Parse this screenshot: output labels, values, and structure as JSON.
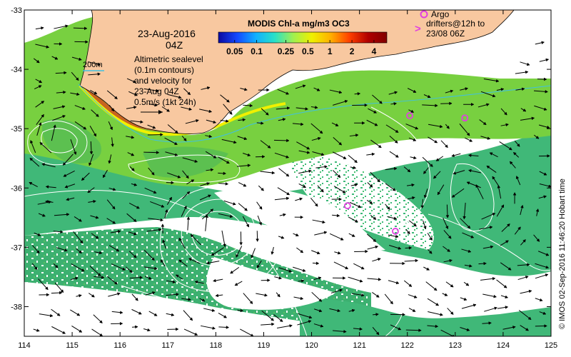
{
  "title_date": "23-Aug-2016",
  "title_time": "04Z",
  "colorbar": {
    "title": "MODIS Chl-a mg/m3 OC3",
    "tick_labels": [
      "0.05",
      "0.1",
      "0.25",
      "0.5",
      "1",
      "2",
      "4"
    ],
    "tick_values": [
      0.05,
      0.1,
      0.25,
      0.5,
      1,
      2,
      4
    ],
    "range": [
      0.03,
      6
    ],
    "scale": "log",
    "colors": [
      "#0a0aa0",
      "#1448ff",
      "#10b0ff",
      "#28e0c8",
      "#a0f050",
      "#f0f000",
      "#ffb000",
      "#ff4000",
      "#b00000",
      "#800000"
    ]
  },
  "isobath_label": "200m",
  "isobath_color": "#40c0e0",
  "annotation_lines": [
    "Altimetric sealevel",
    "(0.1m contours)",
    "and velocity for",
    "23-Aug 04Z",
    "0.5m/s (1kt 24h)"
  ],
  "argo_legend": {
    "line1": "Argo",
    "line2": "drifters@12h to",
    "line3": "23/08 06Z",
    "marker_color": "#e040e0"
  },
  "x_axis": {
    "ticks": [
      "114",
      "115",
      "116",
      "117",
      "118",
      "119",
      "120",
      "121",
      "122",
      "123",
      "124",
      "125"
    ],
    "range": [
      114,
      125
    ]
  },
  "y_axis": {
    "ticks": [
      "-33",
      "-34",
      "-35",
      "-36",
      "-37",
      "-38"
    ],
    "range": [
      -38.5,
      -33
    ]
  },
  "footer_text": "© IMOS 02-Sep-2016 11:46:20 Hobart time",
  "colors": {
    "land": "#f8c8a0",
    "coastal_chl": "#78d040",
    "offshore_chl": "#40b878",
    "contour": "#ffffff",
    "vector": "#000000"
  },
  "argo_drifters": [
    {
      "lon": 122.05,
      "lat": -34.78
    },
    {
      "lon": 123.2,
      "lat": -34.82
    },
    {
      "lon": 120.75,
      "lat": -36.3
    },
    {
      "lon": 121.75,
      "lat": -36.73
    }
  ]
}
